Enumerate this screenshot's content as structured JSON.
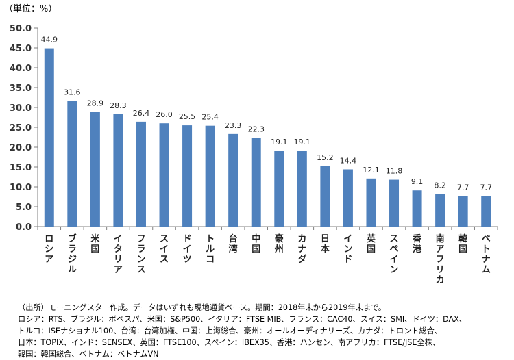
{
  "unit_label": "（単位：%）",
  "notes": [
    "（出所）モーニングスター作成。データはいずれも現地通貨ベース。期間：2018年末から2019年末まで。",
    "ロシア：RTS、ブラジル：ボベスパ、米国：S&P500、イタリア：FTSE MIB、フランス：CAC40、スイス：SMI、ドイツ：DAX、",
    "トルコ：ISEナショナル100、台湾：台湾加権、中国：上海総合、豪州：オールオーディナリーズ、カナダ：トロント総合、",
    "日本：TOPIX、インド：SENSEX、英国：FTSE100、スペイン：IBEX35、香港：ハンセン、南アフリカ：FTSE/JSE全株、",
    "韓国：韓国総合、ベトナム：ベトナムVN"
  ],
  "colors": {
    "bar": "#4f81bd",
    "axis": "#808080",
    "text": "#333333"
  },
  "chart_data": {
    "type": "bar",
    "categories": [
      "ロシア",
      "ブラジル",
      "米国",
      "イタリア",
      "フランス",
      "スイス",
      "ドイツ",
      "トルコ",
      "台湾",
      "中国",
      "豪州",
      "カナダ",
      "日本",
      "インド",
      "英国",
      "スペイン",
      "香港",
      "南アフリカ",
      "韓国",
      "ベトナム"
    ],
    "values": [
      44.9,
      31.6,
      28.9,
      28.3,
      26.4,
      26.0,
      25.5,
      25.4,
      23.3,
      22.3,
      19.1,
      19.1,
      15.2,
      14.4,
      12.1,
      11.8,
      9.1,
      8.2,
      7.7,
      7.7
    ],
    "value_labels": [
      "44.9",
      "31.6",
      "28.9",
      "28.3",
      "26.4",
      "26.0",
      "25.5",
      "25.4",
      "23.3",
      "22.3",
      "19.1",
      "19.1",
      "15.2",
      "14.4",
      "12.1",
      "11.8",
      "9.1",
      "8.2",
      "7.7",
      "7.7"
    ],
    "y_ticks": [
      "0.0",
      "5.0",
      "10.0",
      "15.0",
      "20.0",
      "25.0",
      "30.0",
      "35.0",
      "40.0",
      "45.0",
      "50.0"
    ],
    "ylim": [
      0,
      50
    ],
    "title": "",
    "xlabel": "",
    "ylabel": "",
    "grid": false
  }
}
